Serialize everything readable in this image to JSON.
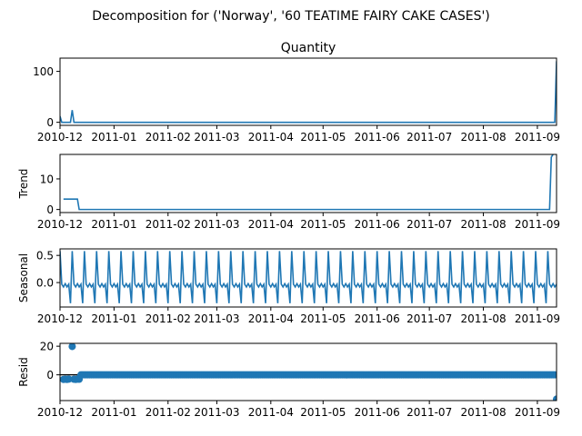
{
  "figure": {
    "suptitle": "Decomposition for ('Norway', '60 TEATIME FAIRY CAKE CASES')"
  },
  "chart_data": [
    {
      "type": "line",
      "title": "Quantity",
      "ylabel": "",
      "x_range": [
        "2010-12-01",
        "2011-09-12"
      ],
      "ylim": [
        -6,
        126
      ],
      "yticks": [
        0,
        100
      ],
      "xticks": [
        "2010-12",
        "2011-01",
        "2011-02",
        "2011-03",
        "2011-04",
        "2011-05",
        "2011-06",
        "2011-07",
        "2011-08",
        "2011-09"
      ],
      "series": [
        {
          "points": [
            [
              "2010-12-01",
              12
            ],
            [
              "2010-12-02",
              0
            ],
            [
              "2010-12-07",
              0
            ],
            [
              "2010-12-08",
              24
            ],
            [
              "2010-12-09",
              0
            ],
            [
              "2011-09-11",
              0
            ],
            [
              "2011-09-12",
              120
            ]
          ]
        }
      ]
    },
    {
      "type": "line",
      "title": "",
      "ylabel": "Trend",
      "x_range": [
        "2010-12-01",
        "2011-09-12"
      ],
      "ylim": [
        -1,
        18
      ],
      "yticks": [
        0,
        10
      ],
      "xticks": [
        "2010-12",
        "2011-01",
        "2011-02",
        "2011-03",
        "2011-04",
        "2011-05",
        "2011-06",
        "2011-07",
        "2011-08",
        "2011-09"
      ],
      "series": [
        {
          "points": [
            [
              "2010-12-03",
              3.4
            ],
            [
              "2010-12-11",
              3.4
            ],
            [
              "2010-12-12",
              0
            ],
            [
              "2011-09-08",
              0
            ],
            [
              "2011-09-09",
              17.1
            ],
            [
              "2011-09-10",
              18
            ]
          ]
        }
      ]
    },
    {
      "type": "line",
      "title": "",
      "ylabel": "Seasonal",
      "x_range": [
        "2010-12-01",
        "2011-09-12"
      ],
      "ylim": [
        -0.45,
        0.62
      ],
      "yticks": [
        0.0,
        0.5
      ],
      "ytick_labels": [
        "0.0",
        "0.5"
      ],
      "xticks": [
        "2010-12",
        "2011-01",
        "2011-02",
        "2011-03",
        "2011-04",
        "2011-05",
        "2011-06",
        "2011-07",
        "2011-08",
        "2011-09"
      ],
      "seasonal_period_days": 7,
      "seasonal_pattern": [
        0.58,
        -0.03,
        -0.08,
        -0.02,
        -0.08,
        -0.03,
        -0.38
      ],
      "series": [
        {
          "points": []
        }
      ]
    },
    {
      "type": "scatter",
      "title": "",
      "ylabel": "Resid",
      "x_range": [
        "2010-12-01",
        "2011-09-12"
      ],
      "ylim": [
        -18,
        22
      ],
      "yticks": [
        0,
        20
      ],
      "xticks": [
        "2010-12",
        "2011-01",
        "2011-02",
        "2011-03",
        "2011-04",
        "2011-05",
        "2011-06",
        "2011-07",
        "2011-08",
        "2011-09"
      ],
      "zero_line": true,
      "series": [
        {
          "points": [
            [
              "2010-12-03",
              -3.2
            ],
            [
              "2010-12-04",
              -3.1
            ],
            [
              "2010-12-05",
              -3.2
            ],
            [
              "2010-12-06",
              -3.0
            ],
            [
              "2010-12-08",
              19.8
            ],
            [
              "2010-12-09",
              -3.1
            ],
            [
              "2010-12-10",
              -3.2
            ],
            [
              "2010-12-11",
              -3.0
            ],
            [
              "2010-12-12",
              -3.1
            ],
            [
              "2011-09-12",
              -17.0
            ]
          ],
          "zero_points_range": [
            "2010-12-13",
            "2011-09-11"
          ]
        }
      ]
    }
  ],
  "style": {
    "line_color": "#1f77b4",
    "axis_color": "#000000"
  }
}
